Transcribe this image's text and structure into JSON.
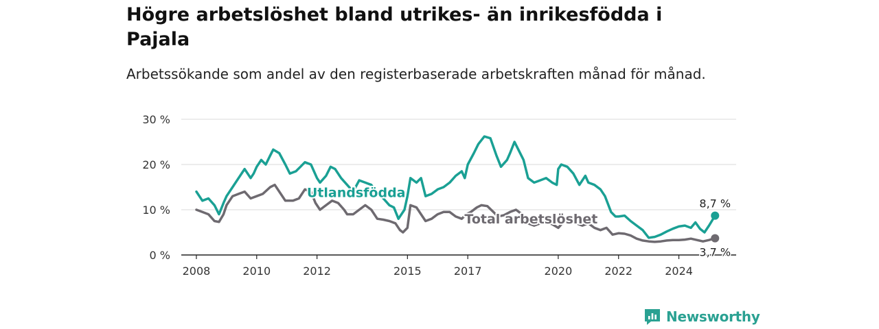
{
  "header": {
    "title": "Högre arbetslöshet bland utrikes- än inrikesfödda i Pajala",
    "subtitle": "Arbetssökande som andel av den registerbaserade arbetskraften månad för månad."
  },
  "brand": {
    "name": "Newsworthy",
    "icon": "newsworthy-logo-icon",
    "color": "#2aa192"
  },
  "chart_data": {
    "type": "line",
    "xlim": [
      2007.5,
      2025.9
    ],
    "ylim": [
      0,
      30
    ],
    "yticks": [
      0,
      10,
      20,
      30
    ],
    "ytick_labels": [
      "0 %",
      "10 %",
      "20 %",
      "30 %"
    ],
    "xticks": [
      2008,
      2010,
      2012,
      2015,
      2017,
      2020,
      2022,
      2024
    ],
    "xtick_labels": [
      "2008",
      "2010",
      "2012",
      "2015",
      "2017",
      "2020",
      "2022",
      "2024"
    ],
    "grid": true,
    "series": [
      {
        "name": "Utlandsfödda",
        "color": "#1aa094",
        "end_label": "8,7 %",
        "points": [
          [
            2008.0,
            14.0
          ],
          [
            2008.2,
            12.0
          ],
          [
            2008.4,
            12.5
          ],
          [
            2008.6,
            11.0
          ],
          [
            2008.75,
            9.0
          ],
          [
            2008.9,
            11.5
          ],
          [
            2009.0,
            13.0
          ],
          [
            2009.2,
            15.0
          ],
          [
            2009.4,
            17.0
          ],
          [
            2009.6,
            19.0
          ],
          [
            2009.8,
            17.0
          ],
          [
            2009.9,
            18.0
          ],
          [
            2010.0,
            19.5
          ],
          [
            2010.15,
            21.0
          ],
          [
            2010.3,
            20.0
          ],
          [
            2010.45,
            22.0
          ],
          [
            2010.55,
            23.3
          ],
          [
            2010.75,
            22.5
          ],
          [
            2010.95,
            20.0
          ],
          [
            2011.1,
            18.0
          ],
          [
            2011.3,
            18.5
          ],
          [
            2011.45,
            19.5
          ],
          [
            2011.6,
            20.5
          ],
          [
            2011.8,
            20.0
          ],
          [
            2012.0,
            17.0
          ],
          [
            2012.1,
            16.0
          ],
          [
            2012.3,
            17.5
          ],
          [
            2012.45,
            19.5
          ],
          [
            2012.6,
            19.0
          ],
          [
            2012.8,
            17.0
          ],
          [
            2013.0,
            15.5
          ],
          [
            2013.2,
            14.0
          ],
          [
            2013.4,
            16.5
          ],
          [
            2013.6,
            16.0
          ],
          [
            2013.8,
            15.5
          ],
          [
            2014.0,
            13.5
          ],
          [
            2014.2,
            12.5
          ],
          [
            2014.4,
            11.0
          ],
          [
            2014.55,
            10.5
          ],
          [
            2014.7,
            8.0
          ],
          [
            2014.9,
            10.0
          ],
          [
            2015.0,
            13.0
          ],
          [
            2015.1,
            17.0
          ],
          [
            2015.3,
            16.0
          ],
          [
            2015.45,
            17.0
          ],
          [
            2015.6,
            13.0
          ],
          [
            2015.8,
            13.5
          ],
          [
            2016.0,
            14.5
          ],
          [
            2016.2,
            15.0
          ],
          [
            2016.4,
            16.0
          ],
          [
            2016.6,
            17.5
          ],
          [
            2016.8,
            18.5
          ],
          [
            2016.9,
            17.0
          ],
          [
            2017.0,
            20.0
          ],
          [
            2017.2,
            22.5
          ],
          [
            2017.35,
            24.5
          ],
          [
            2017.55,
            26.2
          ],
          [
            2017.75,
            25.8
          ],
          [
            2017.95,
            22.0
          ],
          [
            2018.1,
            19.5
          ],
          [
            2018.3,
            21.0
          ],
          [
            2018.4,
            22.5
          ],
          [
            2018.55,
            25.0
          ],
          [
            2018.7,
            23.0
          ],
          [
            2018.85,
            21.0
          ],
          [
            2019.0,
            17.0
          ],
          [
            2019.2,
            16.0
          ],
          [
            2019.4,
            16.5
          ],
          [
            2019.6,
            17.0
          ],
          [
            2019.8,
            16.0
          ],
          [
            2019.95,
            15.5
          ],
          [
            2020.0,
            19.0
          ],
          [
            2020.1,
            20.0
          ],
          [
            2020.3,
            19.5
          ],
          [
            2020.5,
            18.0
          ],
          [
            2020.7,
            15.5
          ],
          [
            2020.9,
            17.5
          ],
          [
            2021.0,
            16.0
          ],
          [
            2021.2,
            15.5
          ],
          [
            2021.4,
            14.5
          ],
          [
            2021.55,
            13.0
          ],
          [
            2021.75,
            9.5
          ],
          [
            2021.9,
            8.5
          ],
          [
            2022.0,
            8.5
          ],
          [
            2022.2,
            8.7
          ],
          [
            2022.4,
            7.5
          ],
          [
            2022.6,
            6.5
          ],
          [
            2022.8,
            5.5
          ],
          [
            2023.0,
            3.8
          ],
          [
            2023.2,
            4.0
          ],
          [
            2023.4,
            4.5
          ],
          [
            2023.6,
            5.2
          ],
          [
            2023.8,
            5.8
          ],
          [
            2024.0,
            6.3
          ],
          [
            2024.2,
            6.5
          ],
          [
            2024.4,
            6.0
          ],
          [
            2024.55,
            7.2
          ],
          [
            2024.7,
            5.8
          ],
          [
            2024.85,
            5.0
          ],
          [
            2025.0,
            6.5
          ],
          [
            2025.2,
            8.7
          ]
        ]
      },
      {
        "name": "Total arbetslöshet",
        "color": "#6e6a70",
        "end_label": "3,7 %",
        "points": [
          [
            2008.0,
            10.0
          ],
          [
            2008.2,
            9.5
          ],
          [
            2008.4,
            9.0
          ],
          [
            2008.6,
            7.5
          ],
          [
            2008.75,
            7.3
          ],
          [
            2008.9,
            9.0
          ],
          [
            2009.0,
            11.0
          ],
          [
            2009.2,
            13.0
          ],
          [
            2009.4,
            13.5
          ],
          [
            2009.6,
            14.0
          ],
          [
            2009.8,
            12.5
          ],
          [
            2010.0,
            13.0
          ],
          [
            2010.2,
            13.5
          ],
          [
            2010.45,
            15.0
          ],
          [
            2010.6,
            15.5
          ],
          [
            2010.8,
            13.5
          ],
          [
            2010.95,
            12.0
          ],
          [
            2011.2,
            12.0
          ],
          [
            2011.4,
            12.5
          ],
          [
            2011.6,
            14.5
          ],
          [
            2011.8,
            14.0
          ],
          [
            2011.95,
            11.5
          ],
          [
            2012.1,
            10.0
          ],
          [
            2012.3,
            11.0
          ],
          [
            2012.5,
            12.0
          ],
          [
            2012.7,
            11.5
          ],
          [
            2012.9,
            10.0
          ],
          [
            2013.0,
            9.0
          ],
          [
            2013.2,
            9.0
          ],
          [
            2013.4,
            10.0
          ],
          [
            2013.6,
            11.0
          ],
          [
            2013.8,
            10.0
          ],
          [
            2014.0,
            8.0
          ],
          [
            2014.2,
            7.8
          ],
          [
            2014.4,
            7.5
          ],
          [
            2014.6,
            7.0
          ],
          [
            2014.75,
            5.5
          ],
          [
            2014.85,
            5.0
          ],
          [
            2015.0,
            6.0
          ],
          [
            2015.1,
            11.0
          ],
          [
            2015.3,
            10.5
          ],
          [
            2015.45,
            9.0
          ],
          [
            2015.6,
            7.5
          ],
          [
            2015.8,
            8.0
          ],
          [
            2016.0,
            9.0
          ],
          [
            2016.2,
            9.5
          ],
          [
            2016.4,
            9.5
          ],
          [
            2016.6,
            8.5
          ],
          [
            2016.8,
            8.0
          ],
          [
            2016.95,
            9.0
          ],
          [
            2017.1,
            9.5
          ],
          [
            2017.3,
            10.5
          ],
          [
            2017.45,
            11.0
          ],
          [
            2017.65,
            10.8
          ],
          [
            2017.85,
            9.5
          ],
          [
            2018.0,
            8.5
          ],
          [
            2018.2,
            8.8
          ],
          [
            2018.4,
            9.5
          ],
          [
            2018.6,
            10.0
          ],
          [
            2018.8,
            9.0
          ],
          [
            2019.0,
            7.0
          ],
          [
            2019.2,
            6.5
          ],
          [
            2019.4,
            7.0
          ],
          [
            2019.6,
            7.2
          ],
          [
            2019.8,
            6.8
          ],
          [
            2020.0,
            6.0
          ],
          [
            2020.2,
            7.5
          ],
          [
            2020.4,
            8.0
          ],
          [
            2020.6,
            7.0
          ],
          [
            2020.8,
            6.5
          ],
          [
            2021.0,
            7.0
          ],
          [
            2021.2,
            6.0
          ],
          [
            2021.4,
            5.5
          ],
          [
            2021.6,
            6.0
          ],
          [
            2021.8,
            4.5
          ],
          [
            2022.0,
            4.8
          ],
          [
            2022.2,
            4.7
          ],
          [
            2022.4,
            4.3
          ],
          [
            2022.6,
            3.6
          ],
          [
            2022.8,
            3.2
          ],
          [
            2023.0,
            3.0
          ],
          [
            2023.2,
            2.9
          ],
          [
            2023.4,
            3.0
          ],
          [
            2023.6,
            3.2
          ],
          [
            2023.8,
            3.3
          ],
          [
            2024.0,
            3.3
          ],
          [
            2024.2,
            3.4
          ],
          [
            2024.4,
            3.6
          ],
          [
            2024.6,
            3.3
          ],
          [
            2024.8,
            3.0
          ],
          [
            2025.0,
            3.3
          ],
          [
            2025.2,
            3.7
          ]
        ]
      }
    ]
  }
}
